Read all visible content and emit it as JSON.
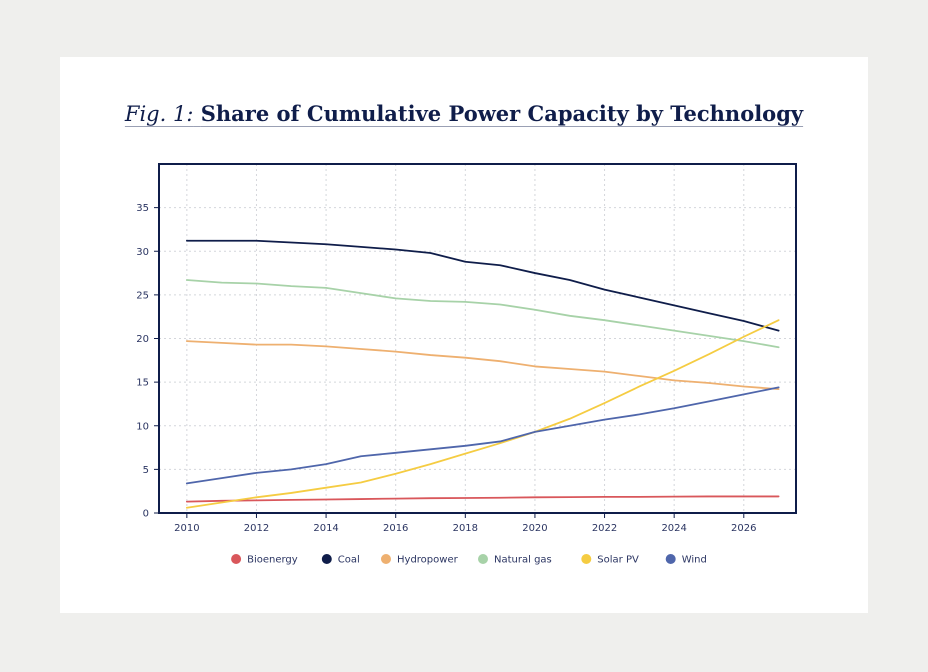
{
  "figure": {
    "title_prefix": "Fig. 1:",
    "title": "Share of Cumulative Power Capacity by Technology"
  },
  "colors": {
    "frame": "#0f1d4a",
    "grid": "#d4d6db",
    "tick_text": "#2b3562"
  },
  "chart_data": {
    "type": "line",
    "title": "Share of Cumulative Power Capacity by Technology",
    "xlabel": "",
    "ylabel": "",
    "xlim": [
      2009.2,
      2027.5
    ],
    "ylim": [
      0,
      40
    ],
    "x_ticks": [
      2010,
      2012,
      2014,
      2016,
      2018,
      2020,
      2022,
      2024,
      2026
    ],
    "y_ticks": [
      0,
      5,
      10,
      15,
      20,
      25,
      30,
      35
    ],
    "grid": true,
    "legend_position": "bottom",
    "x": [
      2010,
      2011,
      2012,
      2013,
      2014,
      2015,
      2016,
      2017,
      2018,
      2019,
      2020,
      2021,
      2022,
      2023,
      2024,
      2025,
      2026,
      2027
    ],
    "series": [
      {
        "name": "Bioenergy",
        "color": "#d9575b",
        "values": [
          1.3,
          1.4,
          1.45,
          1.5,
          1.55,
          1.6,
          1.65,
          1.7,
          1.72,
          1.75,
          1.8,
          1.82,
          1.85,
          1.85,
          1.88,
          1.9,
          1.9,
          1.9
        ]
      },
      {
        "name": "Coal",
        "color": "#0f1d4a",
        "values": [
          31.2,
          31.2,
          31.2,
          31.0,
          30.8,
          30.5,
          30.2,
          29.8,
          28.8,
          28.4,
          27.5,
          26.7,
          25.6,
          24.7,
          23.8,
          22.9,
          22.0,
          20.9
        ]
      },
      {
        "name": "Hydropower",
        "color": "#eeb070",
        "values": [
          19.7,
          19.5,
          19.3,
          19.3,
          19.1,
          18.8,
          18.5,
          18.1,
          17.8,
          17.4,
          16.8,
          16.5,
          16.2,
          15.7,
          15.2,
          14.9,
          14.5,
          14.2
        ]
      },
      {
        "name": "Natural gas",
        "color": "#a7d2a8",
        "values": [
          26.7,
          26.4,
          26.3,
          26.0,
          25.8,
          25.2,
          24.6,
          24.3,
          24.2,
          23.9,
          23.3,
          22.6,
          22.1,
          21.5,
          20.9,
          20.3,
          19.7,
          19.0
        ]
      },
      {
        "name": "Solar PV",
        "color": "#f5cc42",
        "values": [
          0.6,
          1.2,
          1.8,
          2.3,
          2.9,
          3.5,
          4.5,
          5.6,
          6.8,
          8.0,
          9.3,
          10.8,
          12.6,
          14.5,
          16.3,
          18.2,
          20.2,
          22.1
        ]
      },
      {
        "name": "Wind",
        "color": "#4f66ab",
        "values": [
          3.4,
          4.0,
          4.6,
          5.0,
          5.6,
          6.5,
          6.9,
          7.3,
          7.7,
          8.2,
          9.3,
          10.0,
          10.7,
          11.3,
          12.0,
          12.8,
          13.6,
          14.4
        ]
      }
    ]
  }
}
